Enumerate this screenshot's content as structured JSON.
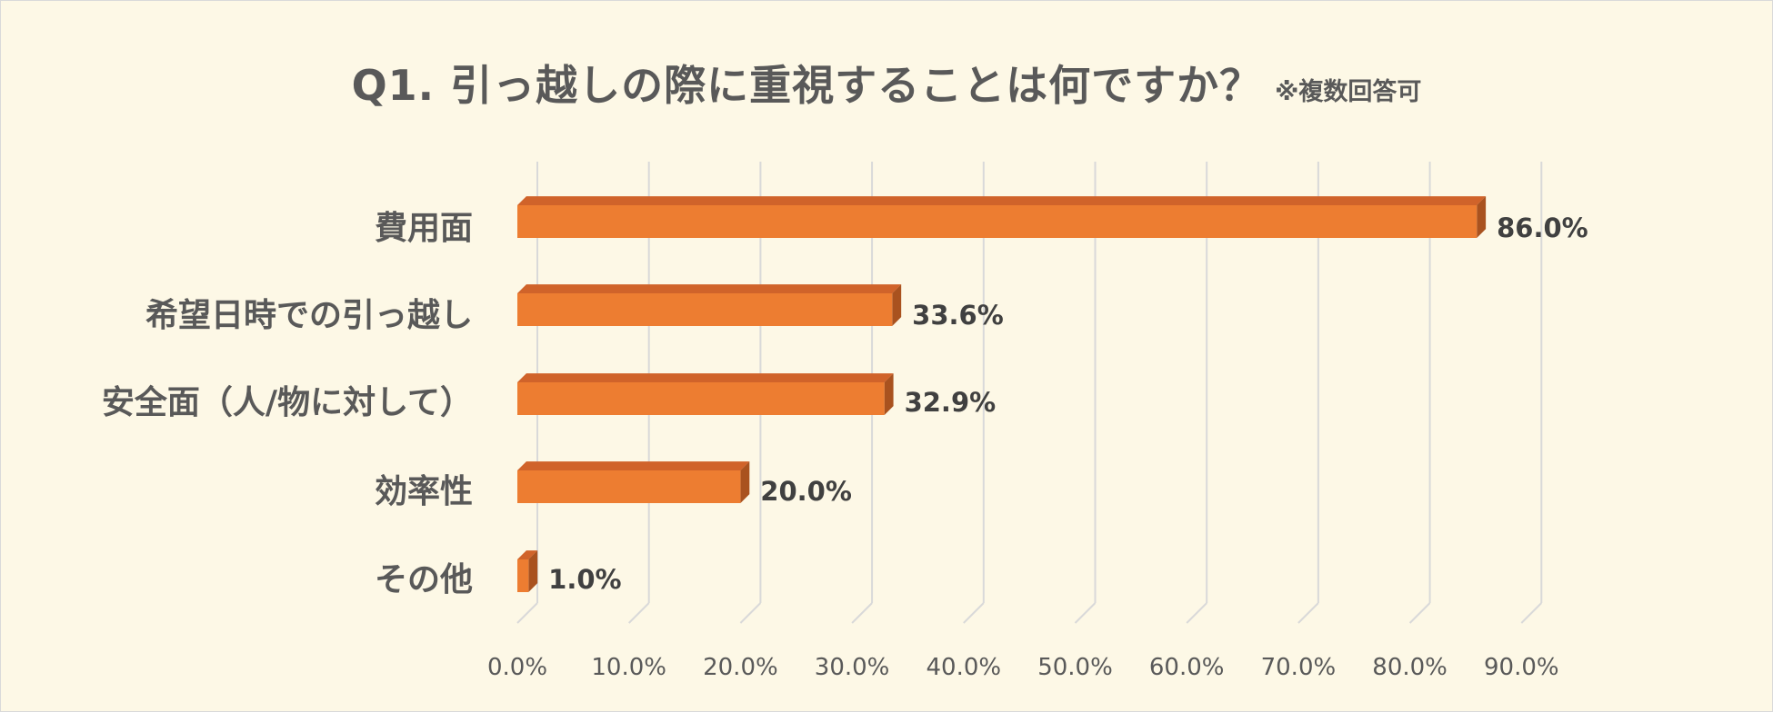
{
  "title": "Q1. 引っ越しの際に重視することは何ですか？",
  "title_note": "※複数回答可",
  "colors": {
    "background": "#fdf8e6",
    "bar_front": "#ed7d31",
    "bar_top": "#d0632a",
    "bar_side": "#a9521f",
    "gridline": "#d9d9d9"
  },
  "chart_data": {
    "type": "bar",
    "orientation": "horizontal",
    "style": "3d",
    "title": "Q1. 引っ越しの際に重視することは何ですか？",
    "subtitle": "※複数回答可",
    "categories": [
      "費用面",
      "希望日時での引っ越し",
      "安全面（人/物に対して）",
      "効率性",
      "その他"
    ],
    "values": [
      86.0,
      33.6,
      32.9,
      20.0,
      1.0
    ],
    "value_labels": [
      "86.0%",
      "33.6%",
      "32.9%",
      "20.0%",
      "1.0%"
    ],
    "xlim": [
      0,
      90
    ],
    "ticks": [
      0,
      10,
      20,
      30,
      40,
      50,
      60,
      70,
      80,
      90
    ],
    "tick_labels": [
      "0.0%",
      "10.0%",
      "20.0%",
      "30.0%",
      "40.0%",
      "50.0%",
      "60.0%",
      "70.0%",
      "80.0%",
      "90.0%"
    ],
    "grid": true,
    "legend": "none"
  }
}
